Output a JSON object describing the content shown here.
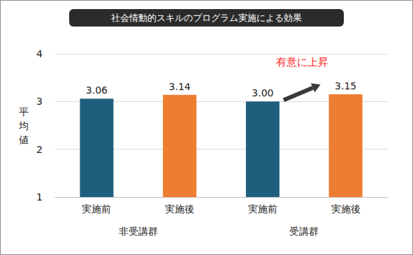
{
  "chart_data": {
    "type": "bar",
    "title": "社会情動的スキルのプログラム実施による効果",
    "ylabel": "平均値",
    "categories": [
      "実施前",
      "実施後",
      "実施前",
      "実施後"
    ],
    "groups": [
      "非受講群",
      "受講群"
    ],
    "values": [
      3.06,
      3.14,
      3.0,
      3.15
    ],
    "value_labels": [
      "3.06",
      "3.14",
      "3.00",
      "3.15"
    ],
    "colors": [
      "#1f5f7e",
      "#ed7d31",
      "#1f5f7e",
      "#ed7d31"
    ],
    "ylim": [
      1,
      4
    ],
    "yticks": [
      1,
      2,
      3,
      4
    ],
    "grid": true,
    "data_labels": true,
    "annotation": "有意に上昇"
  }
}
